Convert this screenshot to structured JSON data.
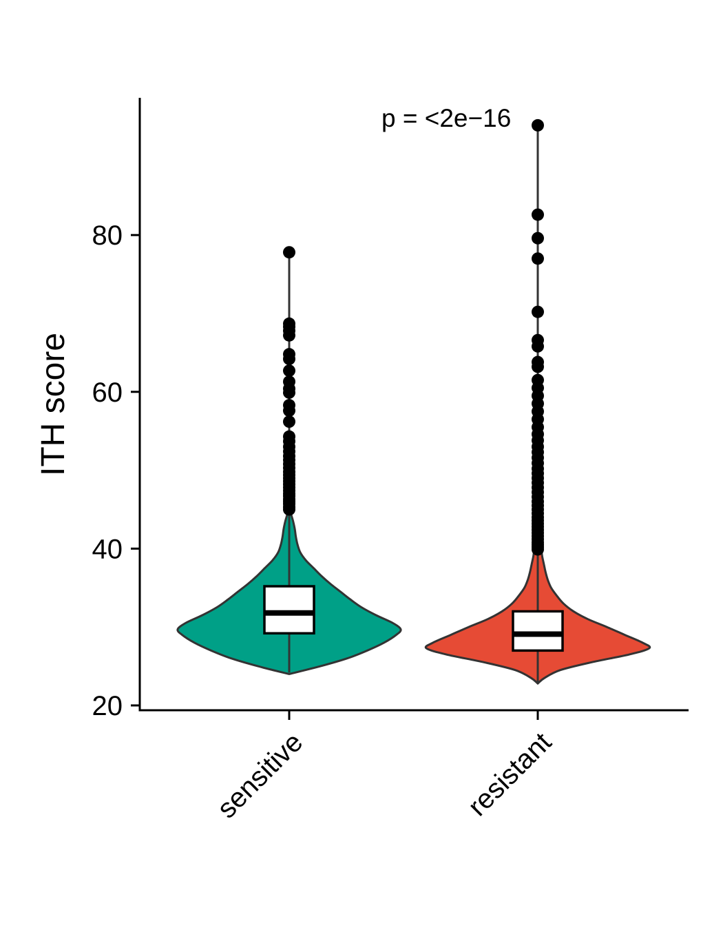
{
  "chart_data": {
    "type": "violin",
    "ylabel": "ITH score",
    "xlabel": "",
    "ylim": [
      19.5,
      97.5
    ],
    "yticks": [
      20,
      40,
      60,
      80
    ],
    "annotation": "p = <2e−16",
    "legend": "none",
    "grid": false,
    "categories": [
      "sensitive",
      "resistant"
    ],
    "groups": [
      {
        "name": "sensitive",
        "color": "#00A087",
        "min": 24.2,
        "q1": 29.2,
        "median": 31.8,
        "q3": 35.2,
        "whisker_high": 44.7,
        "max": 77.8,
        "outliers": [
          45.0,
          45.3,
          45.7,
          46.0,
          46.3,
          46.7,
          47.0,
          47.4,
          47.8,
          48.2,
          48.6,
          49.0,
          49.4,
          49.8,
          50.3,
          50.8,
          51.3,
          51.8,
          52.4,
          53.0,
          53.7,
          54.3,
          56.2,
          57.6,
          58.3,
          59.9,
          60.4,
          61.3,
          62.7,
          64.2,
          64.8,
          67.2,
          67.8,
          68.3,
          68.7,
          77.8
        ],
        "density": [
          [
            24.0,
            0
          ],
          [
            25.0,
            0.28
          ],
          [
            26.0,
            0.52
          ],
          [
            27.0,
            0.7
          ],
          [
            28.0,
            0.85
          ],
          [
            29.0,
            0.96
          ],
          [
            29.7,
            1.0
          ],
          [
            30.5,
            0.93
          ],
          [
            31.5,
            0.78
          ],
          [
            32.5,
            0.65
          ],
          [
            33.5,
            0.55
          ],
          [
            34.5,
            0.46
          ],
          [
            35.5,
            0.37
          ],
          [
            36.5,
            0.29
          ],
          [
            37.5,
            0.22
          ],
          [
            38.5,
            0.15
          ],
          [
            39.5,
            0.1
          ],
          [
            40.5,
            0.075
          ],
          [
            41.5,
            0.06
          ],
          [
            42.5,
            0.05
          ],
          [
            43.5,
            0.035
          ],
          [
            44.5,
            0.015
          ],
          [
            45.5,
            0
          ]
        ]
      },
      {
        "name": "resistant",
        "color": "#E64B35",
        "min": 22.8,
        "q1": 27.0,
        "median": 29.1,
        "q3": 32.0,
        "whisker_high": 39.8,
        "max": 94.0,
        "outliers": [
          39.9,
          40.2,
          40.5,
          40.8,
          41.2,
          41.6,
          42.0,
          42.4,
          42.8,
          43.2,
          43.6,
          44.0,
          44.5,
          45.0,
          45.5,
          46.0,
          46.6,
          47.2,
          47.8,
          48.4,
          49.0,
          49.6,
          50.2,
          50.9,
          51.6,
          52.3,
          53.0,
          53.8,
          54.6,
          55.5,
          56.5,
          57.5,
          58.5,
          59.5,
          60.5,
          61.5,
          63.2,
          63.8,
          65.8,
          66.6,
          70.2,
          77.0,
          79.6,
          82.6,
          94.0
        ],
        "density": [
          [
            22.8,
            0
          ],
          [
            23.5,
            0.06
          ],
          [
            24.5,
            0.2
          ],
          [
            25.5,
            0.48
          ],
          [
            26.5,
            0.82
          ],
          [
            27.3,
            1.0
          ],
          [
            28.0,
            0.94
          ],
          [
            29.0,
            0.78
          ],
          [
            30.0,
            0.62
          ],
          [
            31.0,
            0.45
          ],
          [
            32.0,
            0.32
          ],
          [
            33.0,
            0.23
          ],
          [
            34.0,
            0.17
          ],
          [
            35.0,
            0.12
          ],
          [
            36.0,
            0.09
          ],
          [
            37.0,
            0.07
          ],
          [
            38.0,
            0.055
          ],
          [
            39.0,
            0.04
          ],
          [
            40.0,
            0.03
          ],
          [
            41.0,
            0.015
          ],
          [
            41.8,
            0
          ]
        ]
      }
    ]
  }
}
